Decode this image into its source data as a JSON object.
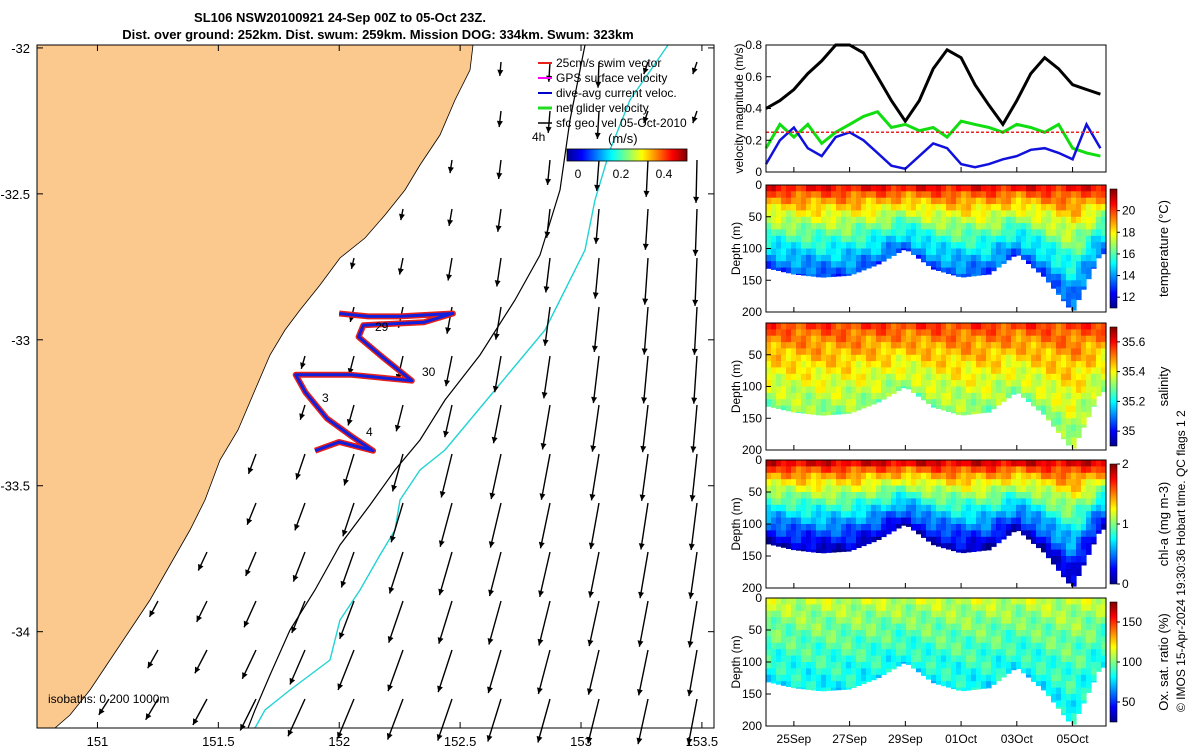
{
  "title": {
    "line1": "SL106 NSW20100921 24-Sep 00Z to 05-Oct 23Z.",
    "line2": "Dist. over ground: 252km. Dist. swum: 259km. Mission DOG: 334km. Swum: 323km"
  },
  "map": {
    "legend": [
      {
        "label": "25cm/s swim vector",
        "color": "#e8201a"
      },
      {
        "label": "GPS surface velocity",
        "color": "#ff00ff"
      },
      {
        "label": "dive-avg current veloc.",
        "color": "#0000cc"
      },
      {
        "label": "net glider velocity",
        "color": "#22dd22"
      },
      {
        "label": "sfc geo. vel 05-Oct-2010",
        "color": "#000000"
      }
    ],
    "legend_extra": "4h",
    "colorbar_unit": "(m/s)",
    "colorbar_ticks": [
      "0",
      "0.2",
      "0.4"
    ],
    "isobaths_label": "isobaths: 0   200  1000m",
    "track_day_labels": [
      "29",
      "30",
      "3",
      "4"
    ],
    "land_color": "#fbc88e",
    "iso200_color": "#000000",
    "iso1000_color": "#22d3d3"
  },
  "footer": "© IMOS 15-Apr-2024 19:30:36 Hobart time. QC flags 1  2",
  "chart_data": [
    {
      "type": "scatter",
      "name": "glider-track-map",
      "xlabel": "",
      "ylabel": "",
      "xlim": [
        150.75,
        153.55
      ],
      "ylim": [
        -34.33,
        -31.99
      ],
      "x_ticks": [
        151,
        151.5,
        152,
        152.5,
        153,
        153.5
      ],
      "x_tick_labels": [
        "151",
        "151.5",
        "152",
        "152.5",
        "153",
        "153.5"
      ],
      "y_ticks": [
        -32,
        -32.5,
        -33,
        -33.5,
        -34
      ],
      "y_tick_labels": [
        "-32",
        "-32.5",
        "-33",
        "-33.5",
        "-34"
      ],
      "track": [
        [
          152.0,
          -32.91
        ],
        [
          152.12,
          -32.92
        ],
        [
          152.25,
          -32.92
        ],
        [
          152.47,
          -32.91
        ],
        [
          152.35,
          -32.94
        ],
        [
          152.1,
          -32.95
        ],
        [
          152.08,
          -32.99
        ],
        [
          152.18,
          -33.06
        ],
        [
          152.3,
          -33.14
        ],
        [
          152.05,
          -33.12
        ],
        [
          151.82,
          -33.12
        ],
        [
          151.86,
          -33.18
        ],
        [
          151.95,
          -33.27
        ],
        [
          152.05,
          -33.33
        ],
        [
          152.14,
          -33.38
        ],
        [
          152.0,
          -33.35
        ],
        [
          151.9,
          -33.38
        ]
      ]
    },
    {
      "type": "line",
      "name": "velocity-magnitude",
      "ylabel": "velocity magnitude (m/s)",
      "ylim": [
        0,
        0.8
      ],
      "y_ticks": [
        0,
        0.2,
        0.4,
        0.6,
        0.8
      ],
      "y_tick_labels": [
        "0",
        "0.2",
        "0.4",
        "0.6",
        "0.8"
      ],
      "x_tick_labels": [
        "25Sep",
        "27Sep",
        "29Sep",
        "01Oct",
        "03Oct",
        "05Oct"
      ],
      "x": [
        24.0,
        24.5,
        25,
        25.5,
        26,
        26.5,
        27,
        27.5,
        28,
        28.5,
        29,
        29.5,
        30,
        30.5,
        31,
        31.5,
        32,
        32.5,
        33,
        33.5,
        34,
        34.5,
        35,
        35.5,
        36
      ],
      "series": [
        {
          "color": "#000000",
          "values": [
            0.4,
            0.45,
            0.52,
            0.62,
            0.7,
            0.8,
            0.8,
            0.75,
            0.6,
            0.45,
            0.32,
            0.45,
            0.65,
            0.77,
            0.72,
            0.55,
            0.42,
            0.3,
            0.45,
            0.62,
            0.72,
            0.65,
            0.55,
            0.52,
            0.49
          ]
        },
        {
          "color": "#11dd11",
          "values": [
            0.15,
            0.3,
            0.22,
            0.3,
            0.18,
            0.25,
            0.3,
            0.35,
            0.38,
            0.28,
            0.3,
            0.26,
            0.28,
            0.22,
            0.32,
            0.3,
            0.28,
            0.25,
            0.3,
            0.28,
            0.25,
            0.3,
            0.15,
            0.12,
            0.1
          ]
        },
        {
          "color": "#1111dd",
          "values": [
            0.05,
            0.2,
            0.28,
            0.15,
            0.1,
            0.22,
            0.25,
            0.2,
            0.12,
            0.04,
            0.02,
            0.1,
            0.18,
            0.15,
            0.05,
            0.03,
            0.05,
            0.08,
            0.1,
            0.14,
            0.15,
            0.12,
            0.08,
            0.3,
            0.15
          ]
        },
        {
          "color": "#ee2222",
          "values": [
            0.25,
            0.25,
            0.25,
            0.25,
            0.25,
            0.25,
            0.25,
            0.25,
            0.25,
            0.25,
            0.25,
            0.25,
            0.25,
            0.25,
            0.25,
            0.25,
            0.25,
            0.25,
            0.25,
            0.25,
            0.25,
            0.25,
            0.25,
            0.25,
            0.25
          ]
        }
      ]
    },
    {
      "type": "heatmap",
      "name": "temperature-section",
      "ylabel": "Depth (m)",
      "colorbar_label": "temperature (°C)",
      "ylim": [
        0,
        200
      ],
      "y_tick_labels": [
        "0",
        "50",
        "100",
        "150",
        "200"
      ],
      "colorbar_ticks": [
        12,
        14,
        16,
        18,
        20
      ],
      "clim": [
        11,
        22
      ],
      "x": [
        24,
        25,
        26,
        27,
        28,
        29,
        30,
        31,
        32,
        33,
        34,
        35,
        36
      ],
      "bottom_depth": [
        130,
        140,
        145,
        142,
        125,
        100,
        132,
        145,
        140,
        108,
        145,
        200,
        108
      ],
      "surface_value": 20.5,
      "deep_value": 13
    },
    {
      "type": "heatmap",
      "name": "salinity-section",
      "ylabel": "Depth (m)",
      "colorbar_label": "salinity",
      "ylim": [
        0,
        200
      ],
      "y_tick_labels": [
        "50",
        "100",
        "150",
        "200"
      ],
      "colorbar_ticks": [
        35,
        35.2,
        35.4,
        35.6
      ],
      "clim": [
        34.9,
        35.7
      ],
      "x": [
        24,
        25,
        26,
        27,
        28,
        29,
        30,
        31,
        32,
        33,
        34,
        35,
        36
      ],
      "bottom_depth": [
        130,
        140,
        145,
        142,
        125,
        100,
        132,
        145,
        140,
        108,
        145,
        200,
        108
      ],
      "surface_value": 35.55,
      "deep_value": 35.3
    },
    {
      "type": "heatmap",
      "name": "chlorophyll-section",
      "ylabel": "Depth (m)",
      "colorbar_label": "chl-a (mg m-3)",
      "ylim": [
        0,
        200
      ],
      "y_tick_labels": [
        "0",
        "50",
        "100",
        "150",
        "200"
      ],
      "colorbar_ticks": [
        0,
        1,
        2
      ],
      "clim": [
        0,
        2
      ],
      "x": [
        24,
        25,
        26,
        27,
        28,
        29,
        30,
        31,
        32,
        33,
        34,
        35,
        36
      ],
      "bottom_depth": [
        130,
        140,
        145,
        142,
        125,
        100,
        132,
        145,
        140,
        108,
        145,
        200,
        108
      ],
      "surface_value": 1.8,
      "deep_value": 0.05
    },
    {
      "type": "heatmap",
      "name": "oxygen-section",
      "ylabel": "Depth (m)",
      "colorbar_label": "Ox. sat. ratio (%)",
      "ylim": [
        0,
        200
      ],
      "y_tick_labels": [
        "0",
        "50",
        "100",
        "150",
        "200"
      ],
      "colorbar_ticks": [
        50,
        100,
        150
      ],
      "clim": [
        25,
        175
      ],
      "x_tick_labels": [
        "25Sep",
        "27Sep",
        "29Sep",
        "01Oct",
        "03Oct",
        "05Oct"
      ],
      "x": [
        24,
        25,
        26,
        27,
        28,
        29,
        30,
        31,
        32,
        33,
        34,
        35,
        36
      ],
      "bottom_depth": [
        130,
        140,
        145,
        142,
        125,
        100,
        132,
        145,
        140,
        108,
        145,
        200,
        108
      ],
      "surface_value": 110,
      "deep_value": 80
    }
  ]
}
